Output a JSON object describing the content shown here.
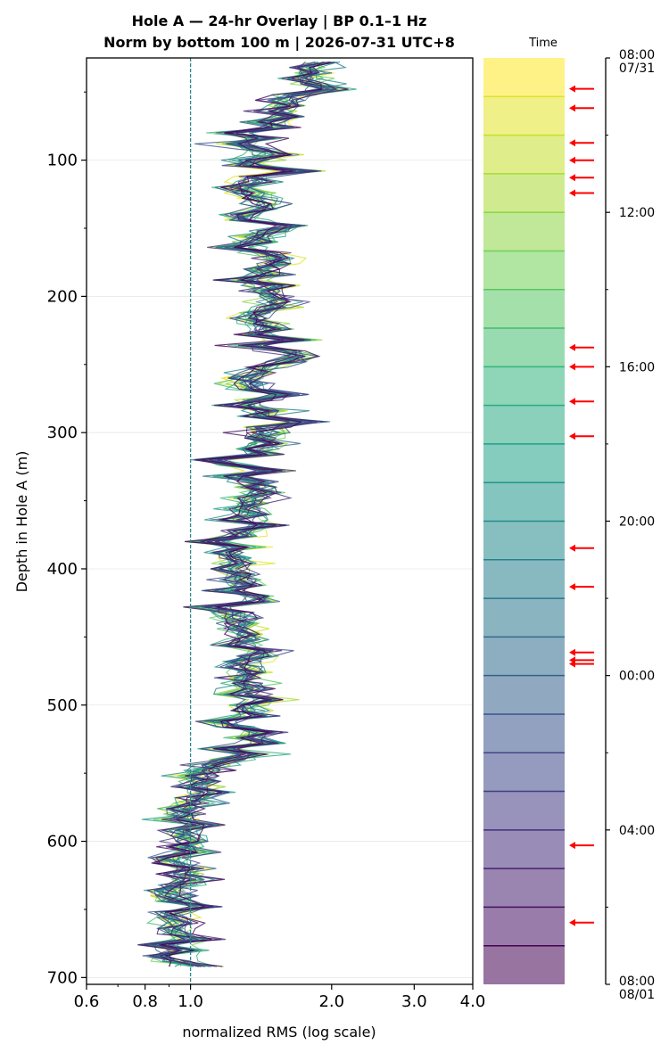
{
  "chart_data": {
    "type": "line",
    "title_line1": "Hole A — 24-hr Overlay  |  BP 0.1–1 Hz",
    "title_line2": "Norm by bottom 100 m  |  2026-07-31 UTC+8",
    "xlabel": "normalized RMS  (log scale)",
    "ylabel": "Depth in Hole A (m)",
    "xscale": "log",
    "xlim": [
      0.6,
      4.0
    ],
    "ylim": [
      705,
      25
    ],
    "x_tick_values": [
      0.6,
      0.8,
      1.0,
      2.0,
      3.0,
      4.0
    ],
    "x_tick_labels": [
      "0.6",
      "0.8",
      "1.0",
      "2.0",
      "3.0",
      "4.0"
    ],
    "y_tick_values": [
      100,
      200,
      300,
      400,
      500,
      600,
      700
    ],
    "y_tick_labels": [
      "100",
      "200",
      "300",
      "400",
      "500",
      "600",
      "700"
    ],
    "reference_line_x": 1.0,
    "grid": "horizontal",
    "n_series": 24,
    "depth_start_m": 28,
    "depth_end_m": 692,
    "depth_step_m": 4,
    "base_profile": [
      {
        "depth": 28,
        "value": 1.8
      },
      {
        "depth": 50,
        "value": 1.82
      },
      {
        "depth": 70,
        "value": 1.5
      },
      {
        "depth": 100,
        "value": 1.4
      },
      {
        "depth": 150,
        "value": 1.42
      },
      {
        "depth": 200,
        "value": 1.45
      },
      {
        "depth": 250,
        "value": 1.48
      },
      {
        "depth": 300,
        "value": 1.45
      },
      {
        "depth": 350,
        "value": 1.3
      },
      {
        "depth": 400,
        "value": 1.28
      },
      {
        "depth": 440,
        "value": 1.25
      },
      {
        "depth": 480,
        "value": 1.35
      },
      {
        "depth": 530,
        "value": 1.4
      },
      {
        "depth": 545,
        "value": 1.05
      },
      {
        "depth": 600,
        "value": 0.97
      },
      {
        "depth": 650,
        "value": 0.93
      },
      {
        "depth": 692,
        "value": 0.92
      }
    ],
    "colorbar": {
      "label": "Time",
      "tick_labels": [
        "08:00\n07/31",
        "12:00",
        "16:00",
        "20:00",
        "00:00",
        "04:00",
        "08:00\n08/01"
      ],
      "tick_hours": [
        0,
        4,
        8,
        12,
        16,
        20,
        24
      ],
      "colormap": [
        "#fde725",
        "#b5de2b",
        "#6ece58",
        "#35b779",
        "#1f9e89",
        "#26828e",
        "#31688e",
        "#3e4989",
        "#482878",
        "#440154"
      ],
      "flagged_hours": [
        0.8,
        1.3,
        2.2,
        2.65,
        3.1,
        3.5,
        7.5,
        8.0,
        8.9,
        9.8,
        12.7,
        13.7,
        15.4,
        15.6,
        15.7,
        20.4,
        22.4
      ]
    }
  }
}
